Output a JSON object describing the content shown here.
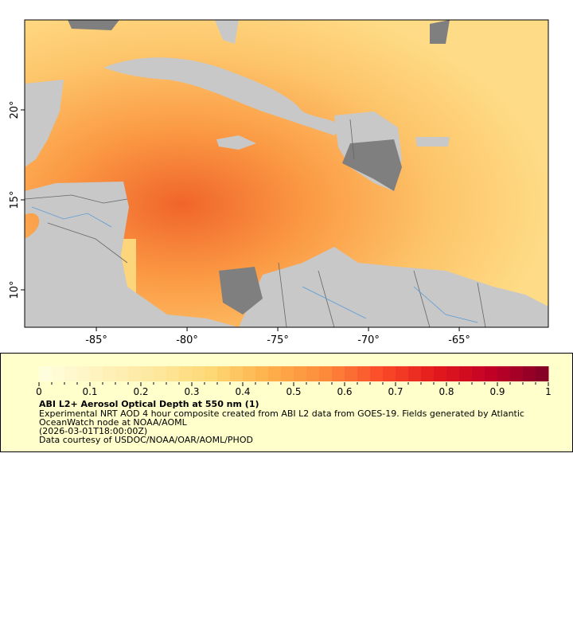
{
  "map": {
    "lon_range": [
      -89,
      -60
    ],
    "lat_range": [
      8,
      25
    ],
    "lon_ticks": [
      "-85°",
      "-80°",
      "-75°",
      "-70°",
      "-65°"
    ],
    "lon_tick_values": [
      -85,
      -80,
      -75,
      -70,
      -65
    ],
    "lat_ticks": [
      "20°",
      "15°",
      "10°"
    ],
    "lat_tick_values": [
      20,
      15,
      10
    ],
    "colors": {
      "land": "#c8c8c8",
      "no_data": "#7f7f7f",
      "rivers": "#5b9bd5",
      "borders": "#666666"
    }
  },
  "legend": {
    "colorbar_range": [
      0,
      1
    ],
    "colorbar_labels": [
      "0",
      "0.1",
      "0.2",
      "0.3",
      "0.4",
      "0.5",
      "0.6",
      "0.7",
      "0.8",
      "0.9",
      "1"
    ],
    "colormap": [
      "#ffffe0",
      "#fff3c0",
      "#fee8a0",
      "#fed976",
      "#feb24c",
      "#fd8d3c",
      "#fc4e2a",
      "#e31a1c",
      "#c10026",
      "#800026"
    ],
    "title": "ABI L2+ Aerosol Optical Depth at 550 nm (1)",
    "line1": "Experimental NRT AOD 4 hour composite created from ABI L2 data from GOES-19. Fields generated by Atlantic",
    "line2": "OceanWatch node at NOAA/AOML",
    "line3": "(2026-03-01T18:00:00Z)",
    "line4": "Data courtesy of USDOC/NOAA/OAR/AOML/PHOD"
  }
}
